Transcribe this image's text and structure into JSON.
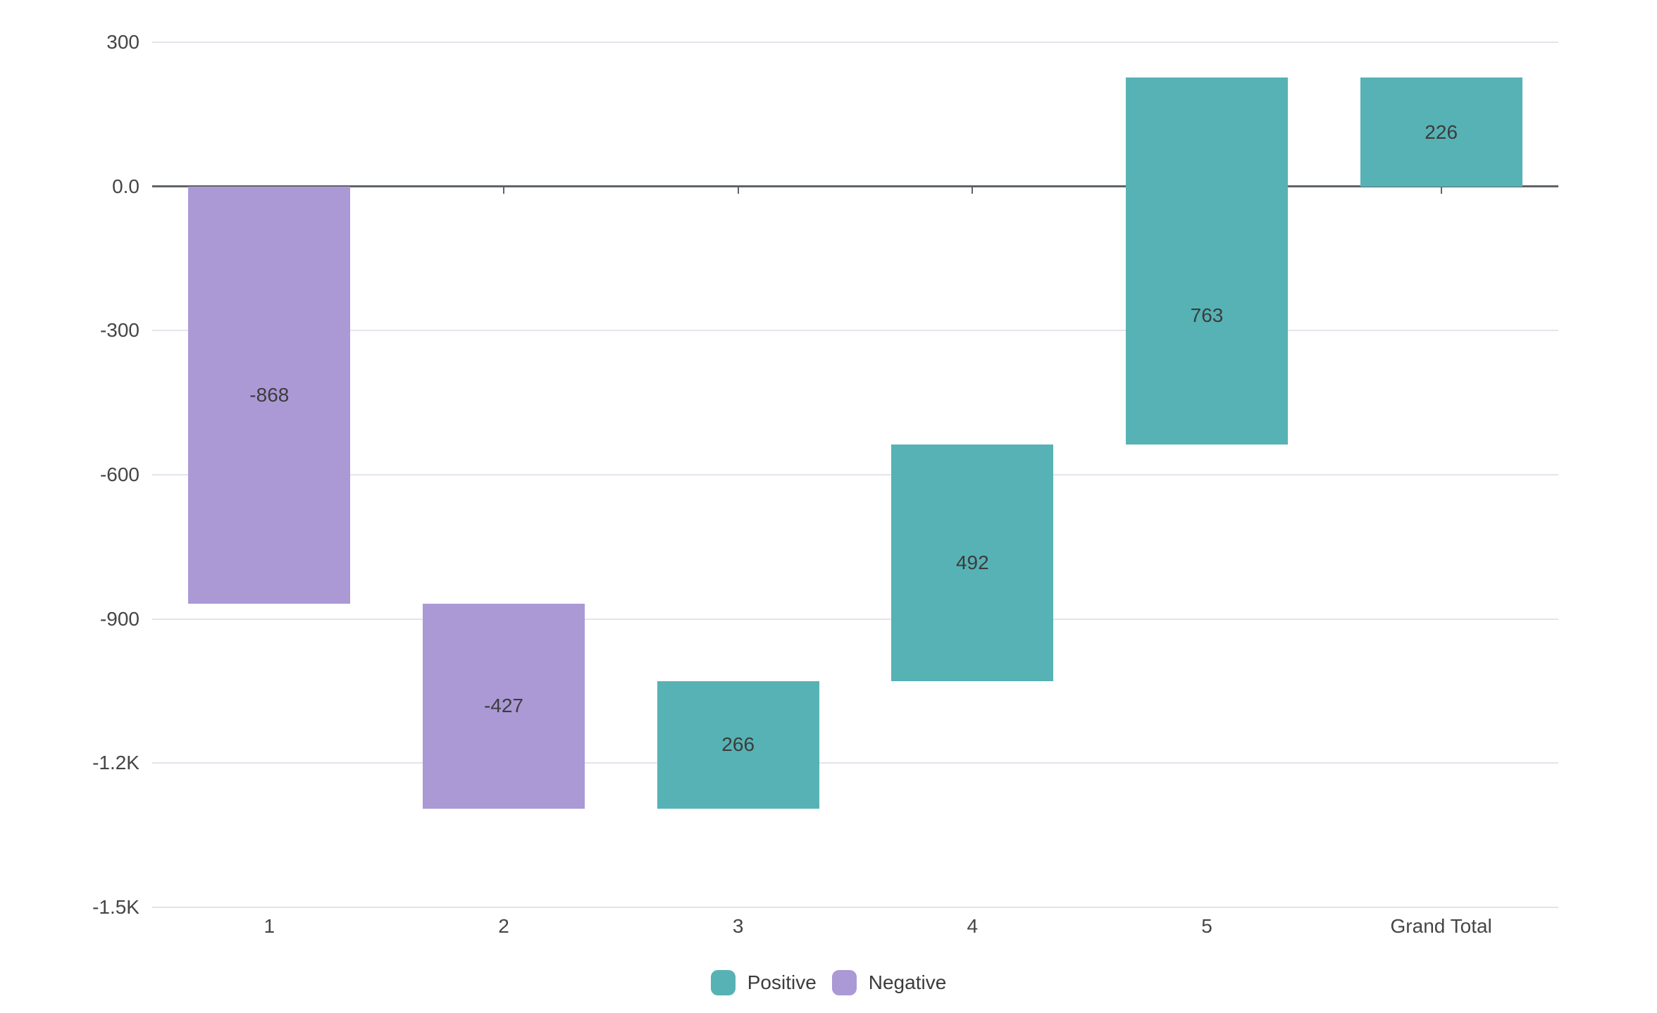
{
  "chart_data": {
    "type": "bar",
    "subtype": "waterfall",
    "title": "",
    "xlabel": "",
    "ylabel": "",
    "categories": [
      "1",
      "2",
      "3",
      "4",
      "5",
      "Grand Total"
    ],
    "values": [
      -868,
      -427,
      266,
      492,
      763,
      226
    ],
    "bar_labels": [
      "-868",
      "-427",
      "266",
      "492",
      "763",
      "226"
    ],
    "bar_start": [
      0,
      -868,
      -1295,
      -1029,
      -537,
      0
    ],
    "bar_end": [
      -868,
      -1295,
      -1029,
      -537,
      226,
      226
    ],
    "bar_sign": [
      "negative",
      "negative",
      "positive",
      "positive",
      "positive",
      "positive"
    ],
    "ylim": [
      -1500,
      300
    ],
    "y_ticks": [
      {
        "value": 300,
        "label": "300"
      },
      {
        "value": 0,
        "label": "0.0"
      },
      {
        "value": -300,
        "label": "-300"
      },
      {
        "value": -600,
        "label": "-600"
      },
      {
        "value": -900,
        "label": "-900"
      },
      {
        "value": -1200,
        "label": "-1.2K"
      },
      {
        "value": -1500,
        "label": "-1.5K"
      }
    ],
    "grid": "horizontal",
    "legend": {
      "position": "bottom-center",
      "items": [
        {
          "name": "positive",
          "label": "Positive",
          "color": "#57b2b5"
        },
        {
          "name": "negative",
          "label": "Negative",
          "color": "#ab99d6"
        }
      ]
    },
    "colors": {
      "positive": "#57b2b5",
      "negative": "#ab99d6",
      "gridline": "#e4e4ee",
      "zero_line": "#5f6368",
      "x_tick": "#5f6368",
      "axis_text": "#454545",
      "bar_label_text": "#3c3c3c",
      "legend_text": "#3c3c3c",
      "background": "#ffffff"
    }
  }
}
